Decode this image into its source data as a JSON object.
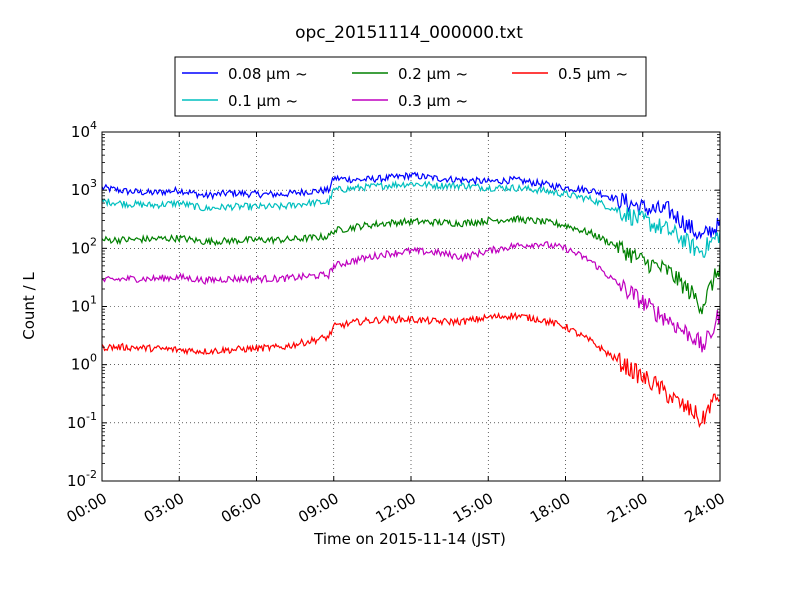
{
  "chart_data": {
    "type": "line",
    "title": "opc_20151114_000000.txt",
    "xlabel": "Time on 2015-11-14 (JST)",
    "ylabel": "Count / L",
    "yscale": "log",
    "xlim": [
      "2015-11-14 00:00",
      "2015-11-15 00:00"
    ],
    "ylim": [
      0.01,
      10000
    ],
    "grid": true,
    "legend_position": "top-center, above plot",
    "x_ticks": [
      "00:00",
      "03:00",
      "06:00",
      "09:00",
      "12:00",
      "15:00",
      "18:00",
      "21:00",
      "24:00"
    ],
    "y_ticks": [
      {
        "value": 0.01,
        "base": "10",
        "exp": "-2"
      },
      {
        "value": 0.1,
        "base": "10",
        "exp": "-1"
      },
      {
        "value": 1,
        "base": "10",
        "exp": "0"
      },
      {
        "value": 10,
        "base": "10",
        "exp": "1"
      },
      {
        "value": 100,
        "base": "10",
        "exp": "2"
      },
      {
        "value": 1000,
        "base": "10",
        "exp": "3"
      },
      {
        "value": 10000,
        "base": "10",
        "exp": "4"
      }
    ],
    "x_hours": [
      0,
      1,
      2,
      3,
      4,
      5,
      6,
      7,
      8,
      8.8,
      9,
      10,
      11,
      12,
      13,
      14,
      15,
      16,
      17,
      18,
      19,
      20,
      21,
      21.5,
      22,
      22.5,
      23,
      23.3,
      23.6,
      24
    ],
    "series": [
      {
        "name": "0.08 μm ~",
        "color": "#0000ff",
        "values": [
          1100,
          950,
          900,
          1000,
          800,
          900,
          850,
          850,
          950,
          1000,
          1600,
          1500,
          1600,
          1800,
          1600,
          1500,
          1400,
          1500,
          1300,
          1100,
          1000,
          700,
          500,
          450,
          450,
          300,
          200,
          150,
          200,
          250
        ]
      },
      {
        "name": "0.1 μm ~",
        "color": "#00bfbf",
        "values": [
          650,
          580,
          550,
          600,
          480,
          520,
          520,
          520,
          600,
          620,
          1000,
          1100,
          1200,
          1300,
          1200,
          1200,
          1100,
          1100,
          1000,
          850,
          700,
          450,
          300,
          250,
          200,
          150,
          100,
          90,
          120,
          180
        ]
      },
      {
        "name": "0.2 μm ~",
        "color": "#008000",
        "values": [
          140,
          140,
          145,
          150,
          130,
          135,
          140,
          140,
          150,
          160,
          200,
          240,
          270,
          290,
          280,
          270,
          300,
          320,
          290,
          250,
          180,
          110,
          60,
          50,
          40,
          25,
          15,
          10,
          20,
          50
        ]
      },
      {
        "name": "0.3 μm ~",
        "color": "#bf00bf",
        "values": [
          28,
          30,
          30,
          32,
          28,
          30,
          30,
          30,
          33,
          35,
          50,
          65,
          80,
          90,
          85,
          70,
          90,
          110,
          120,
          100,
          60,
          25,
          12,
          8,
          6,
          4,
          3,
          2,
          3,
          8
        ]
      },
      {
        "name": "0.5 μm ~",
        "color": "#ff0000",
        "values": [
          2,
          2,
          1.9,
          1.8,
          1.7,
          1.8,
          1.9,
          2,
          2.5,
          3,
          4.5,
          5.5,
          6,
          6,
          5.5,
          5.5,
          6.5,
          7,
          6,
          4.5,
          2.5,
          1.2,
          0.6,
          0.45,
          0.3,
          0.2,
          0.15,
          0.1,
          0.2,
          0.3
        ]
      }
    ]
  }
}
